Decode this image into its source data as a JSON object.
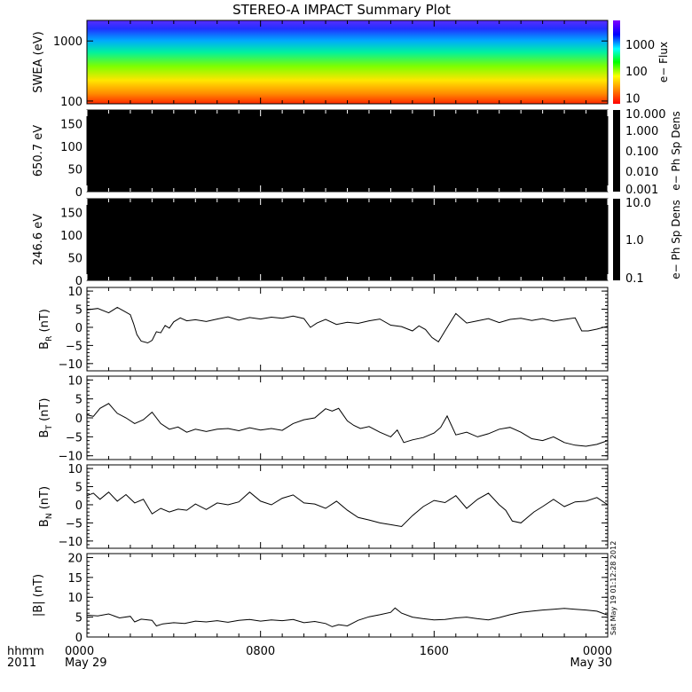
{
  "title": "STEREO-A IMPACT Summary Plot",
  "stamp": "Sat May 19 01:12:28 2012",
  "x_axis": {
    "row1_label": "hhmm",
    "row2_label": "2011",
    "ticks": [
      {
        "hours": 0,
        "label": "0000",
        "date": "May 29"
      },
      {
        "hours": 8,
        "label": "0800",
        "date": ""
      },
      {
        "hours": 16,
        "label": "1600",
        "date": ""
      },
      {
        "hours": 24,
        "label": "0000",
        "date": "May 30"
      }
    ],
    "range_hours": [
      0,
      24
    ]
  },
  "chart_data": [
    {
      "type": "heatmap",
      "panel": "swea",
      "ylabel": "SWEA (eV)",
      "yscale": "log",
      "ylim": [
        90,
        2200
      ],
      "yticks": [
        {
          "v": 100,
          "label": "100"
        },
        {
          "v": 1000,
          "label": "1000"
        }
      ],
      "colorbar": {
        "label": "e− Flux",
        "scale": "log",
        "ticks": [
          {
            "v": 10,
            "label": "10"
          },
          {
            "v": 100,
            "label": "100"
          },
          {
            "v": 1000,
            "label": "1000"
          }
        ],
        "range": [
          6,
          8000
        ],
        "colors": [
          "#ff0000",
          "#ff8000",
          "#ffff00",
          "#00ff00",
          "#00ffff",
          "#0000ff",
          "#8000ff"
        ]
      }
    },
    {
      "type": "heatmap",
      "panel": "pad650",
      "ylabel": "650.7 eV",
      "ylim": [
        0,
        180
      ],
      "yticks": [
        {
          "v": 0,
          "label": "0"
        },
        {
          "v": 50,
          "label": "50"
        },
        {
          "v": 100,
          "label": "100"
        },
        {
          "v": 150,
          "label": "150"
        }
      ],
      "colorbar": {
        "label": "e− Ph Sp Dens",
        "scale": "log",
        "range": [
          0.001,
          10
        ],
        "ticks": [
          {
            "v": 10,
            "label": "10.000"
          },
          {
            "v": 1,
            "label": "1.000"
          },
          {
            "v": 0.1,
            "label": "0.100"
          },
          {
            "v": 0.01,
            "label": "0.010"
          },
          {
            "v": 0.001,
            "label": "0.001"
          }
        ]
      }
    },
    {
      "type": "heatmap",
      "panel": "pad246",
      "ylabel": "246.6 eV",
      "ylim": [
        0,
        180
      ],
      "yticks": [
        {
          "v": 0,
          "label": "0"
        },
        {
          "v": 50,
          "label": "50"
        },
        {
          "v": 100,
          "label": "100"
        },
        {
          "v": 150,
          "label": "150"
        }
      ],
      "colorbar": {
        "label": "e− Ph Sp Dens",
        "scale": "log",
        "range": [
          0.1,
          10
        ],
        "ticks": [
          {
            "v": 10,
            "label": "10.0"
          },
          {
            "v": 1,
            "label": "1.0"
          },
          {
            "v": 0.1,
            "label": "0.1"
          }
        ]
      }
    },
    {
      "type": "line",
      "panel": "br",
      "ylabel": "B",
      "ylabel_sub": "R",
      "ylabel_unit": "(nT)",
      "ylim": [
        -12,
        11
      ],
      "yticks": [
        {
          "v": -10,
          "label": "−10"
        },
        {
          "v": -5,
          "label": "−5"
        },
        {
          "v": 0,
          "label": "0"
        },
        {
          "v": 5,
          "label": "5"
        },
        {
          "v": 10,
          "label": "10"
        }
      ],
      "x": [
        0,
        0.5,
        1,
        1.4,
        1.7,
        2.0,
        2.15,
        2.3,
        2.5,
        2.8,
        3.0,
        3.2,
        3.4,
        3.6,
        3.8,
        4.0,
        4.3,
        4.6,
        5.0,
        5.5,
        6.0,
        6.5,
        7.0,
        7.5,
        8.0,
        8.5,
        9.0,
        9.5,
        10.0,
        10.3,
        10.6,
        11.0,
        11.5,
        12.0,
        12.5,
        13.0,
        13.5,
        14.0,
        14.5,
        15.0,
        15.3,
        15.6,
        15.9,
        16.2,
        16.5,
        17.0,
        17.5,
        18.0,
        18.5,
        19.0,
        19.5,
        20.0,
        20.5,
        21.0,
        21.5,
        22.0,
        22.5,
        22.8,
        23.1,
        23.5,
        24.0
      ],
      "y": [
        4.8,
        5.2,
        4.0,
        5.5,
        4.5,
        3.5,
        1.0,
        -2.0,
        -3.8,
        -4.3,
        -3.6,
        -1.2,
        -1.5,
        0.5,
        -0.2,
        1.5,
        2.6,
        1.8,
        2.1,
        1.6,
        2.3,
        2.9,
        2.0,
        2.7,
        2.3,
        2.8,
        2.5,
        3.1,
        2.4,
        0.0,
        1.2,
        2.2,
        0.8,
        1.4,
        1.1,
        1.8,
        2.3,
        0.6,
        0.2,
        -1.0,
        0.4,
        -0.6,
        -2.8,
        -4.0,
        -1.0,
        3.8,
        1.2,
        1.8,
        2.4,
        1.3,
        2.2,
        2.5,
        1.9,
        2.4,
        1.7,
        2.2,
        2.6,
        -1.0,
        -1.0,
        -0.5,
        0.3
      ]
    },
    {
      "type": "line",
      "panel": "bt",
      "ylabel": "B",
      "ylabel_sub": "T",
      "ylabel_unit": "(nT)",
      "ylim": [
        -11,
        11
      ],
      "yticks": [
        {
          "v": -10,
          "label": "−10"
        },
        {
          "v": -5,
          "label": "−5"
        },
        {
          "v": 0,
          "label": "0"
        },
        {
          "v": 5,
          "label": "5"
        },
        {
          "v": 10,
          "label": "10"
        }
      ],
      "x": [
        0,
        0.3,
        0.6,
        1.0,
        1.4,
        1.8,
        2.2,
        2.6,
        3.0,
        3.4,
        3.8,
        4.2,
        4.6,
        5.0,
        5.5,
        6.0,
        6.5,
        7.0,
        7.5,
        8.0,
        8.5,
        9.0,
        9.5,
        10.0,
        10.5,
        11.0,
        11.3,
        11.6,
        12.0,
        12.3,
        12.6,
        13.0,
        13.5,
        14.0,
        14.3,
        14.6,
        15.0,
        15.5,
        16.0,
        16.3,
        16.6,
        17.0,
        17.5,
        18.0,
        18.5,
        19.0,
        19.5,
        20.0,
        20.5,
        21.0,
        21.5,
        22.0,
        22.5,
        23.0,
        23.5,
        24.0
      ],
      "y": [
        0.8,
        0.4,
        2.5,
        3.8,
        1.2,
        0.0,
        -1.5,
        -0.5,
        1.5,
        -1.5,
        -3.0,
        -2.4,
        -3.8,
        -3.0,
        -3.6,
        -3.0,
        -2.8,
        -3.4,
        -2.6,
        -3.2,
        -2.8,
        -3.3,
        -1.5,
        -0.5,
        0.0,
        2.4,
        1.8,
        2.5,
        -0.8,
        -2.0,
        -2.8,
        -2.3,
        -3.8,
        -5.0,
        -3.2,
        -6.5,
        -5.8,
        -5.2,
        -4.0,
        -2.5,
        0.5,
        -4.5,
        -3.8,
        -5.0,
        -4.2,
        -3.0,
        -2.5,
        -3.8,
        -5.5,
        -6.0,
        -5.0,
        -6.5,
        -7.2,
        -7.5,
        -7.0,
        -6.0
      ]
    },
    {
      "type": "line",
      "panel": "bn",
      "ylabel": "B",
      "ylabel_sub": "N",
      "ylabel_unit": "(nT)",
      "ylim": [
        -12,
        11
      ],
      "yticks": [
        {
          "v": -10,
          "label": "−10"
        },
        {
          "v": -5,
          "label": "−5"
        },
        {
          "v": 0,
          "label": "0"
        },
        {
          "v": 5,
          "label": "5"
        },
        {
          "v": 10,
          "label": "10"
        }
      ],
      "x": [
        0,
        0.3,
        0.6,
        1.0,
        1.4,
        1.8,
        2.2,
        2.6,
        3.0,
        3.4,
        3.8,
        4.2,
        4.6,
        5.0,
        5.5,
        6.0,
        6.5,
        7.0,
        7.5,
        8.0,
        8.5,
        9.0,
        9.5,
        10.0,
        10.5,
        11.0,
        11.5,
        12.0,
        12.5,
        13.0,
        13.5,
        14.0,
        14.5,
        15.0,
        15.5,
        16.0,
        16.5,
        17.0,
        17.5,
        18.0,
        18.5,
        19.0,
        19.3,
        19.6,
        20.0,
        20.3,
        20.6,
        21.0,
        21.5,
        22.0,
        22.5,
        23.0,
        23.5,
        24.0
      ],
      "y": [
        2.5,
        3.2,
        1.5,
        3.5,
        1.0,
        2.8,
        0.5,
        1.5,
        -2.5,
        -1.0,
        -2.0,
        -1.2,
        -1.5,
        0.2,
        -1.3,
        0.5,
        0.0,
        0.8,
        3.5,
        1.0,
        0.0,
        1.8,
        2.7,
        0.5,
        0.2,
        -1.0,
        1.0,
        -1.5,
        -3.5,
        -4.2,
        -5.0,
        -5.5,
        -6.0,
        -3.0,
        -0.5,
        1.2,
        0.6,
        2.5,
        -1.0,
        1.5,
        3.2,
        0.0,
        -1.5,
        -4.5,
        -5.0,
        -3.5,
        -2.0,
        -0.5,
        1.5,
        -0.5,
        0.8,
        1.0,
        2.0,
        0.0
      ]
    },
    {
      "type": "line",
      "panel": "bmag",
      "ylabel": "|B| (nT)",
      "ylim": [
        0,
        21
      ],
      "yticks": [
        {
          "v": 0,
          "label": "0"
        },
        {
          "v": 5,
          "label": "5"
        },
        {
          "v": 10,
          "label": "10"
        },
        {
          "v": 15,
          "label": "15"
        },
        {
          "v": 20,
          "label": "20"
        }
      ],
      "x": [
        0,
        0.5,
        1.0,
        1.5,
        2.0,
        2.2,
        2.5,
        3.0,
        3.2,
        3.5,
        4.0,
        4.5,
        5.0,
        5.5,
        6.0,
        6.5,
        7.0,
        7.5,
        8.0,
        8.5,
        9.0,
        9.5,
        10.0,
        10.5,
        11.0,
        11.3,
        11.6,
        12.0,
        12.5,
        13.0,
        13.5,
        14.0,
        14.2,
        14.5,
        15.0,
        15.5,
        16.0,
        16.5,
        17.0,
        17.5,
        18.0,
        18.5,
        19.0,
        19.5,
        20.0,
        20.5,
        21.0,
        21.5,
        22.0,
        22.5,
        23.0,
        23.5,
        24.0
      ],
      "y": [
        5.5,
        5.3,
        5.8,
        4.8,
        5.2,
        3.8,
        4.5,
        4.2,
        2.8,
        3.3,
        3.6,
        3.4,
        4.0,
        3.8,
        4.1,
        3.7,
        4.2,
        4.4,
        4.0,
        4.3,
        4.1,
        4.4,
        3.6,
        3.9,
        3.4,
        2.6,
        3.1,
        2.8,
        4.2,
        5.1,
        5.6,
        6.2,
        7.3,
        6.0,
        5.0,
        4.6,
        4.3,
        4.4,
        4.8,
        5.0,
        4.6,
        4.3,
        4.9,
        5.6,
        6.2,
        6.5,
        6.8,
        7.0,
        7.2,
        7.0,
        6.8,
        6.5,
        5.5
      ]
    }
  ]
}
